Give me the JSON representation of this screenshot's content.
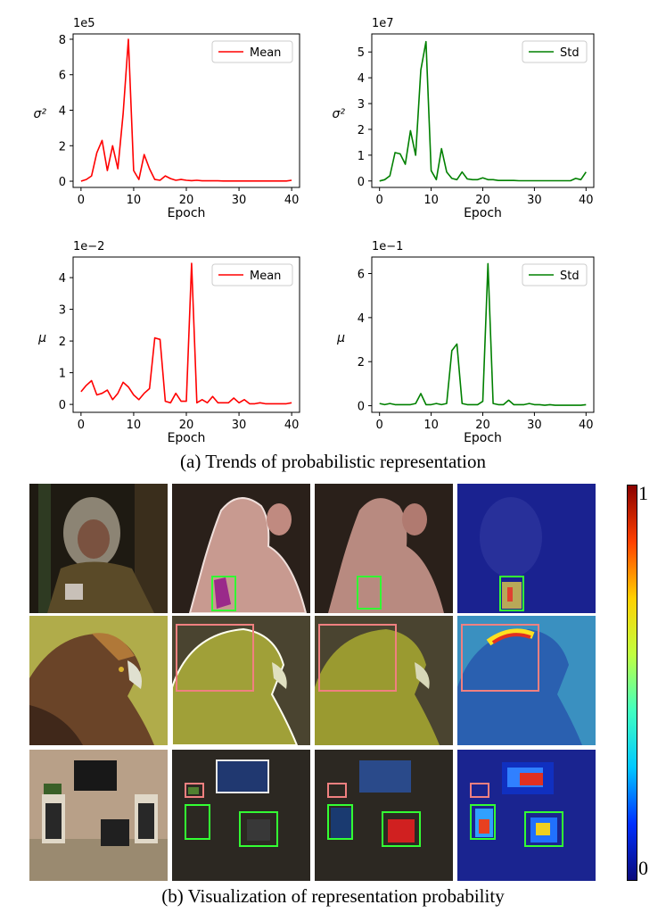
{
  "chart_data": [
    {
      "type": "line",
      "id": "var-mean",
      "multiplier": "1e5",
      "ylabel": "σ²",
      "xlabel": "Epoch",
      "legend": "Mean",
      "legend_position": "top-right",
      "color": "#ff0000",
      "xlim": [
        -1.5,
        41.5
      ],
      "ylim": [
        -0.35,
        8.3
      ],
      "xticks": [
        0,
        10,
        20,
        30,
        40
      ],
      "yticks": [
        0,
        2,
        4,
        6,
        8
      ],
      "x": [
        0,
        1,
        2,
        3,
        4,
        5,
        6,
        7,
        8,
        9,
        10,
        11,
        12,
        13,
        14,
        15,
        16,
        17,
        18,
        19,
        20,
        21,
        22,
        23,
        24,
        25,
        26,
        27,
        28,
        29,
        30,
        31,
        32,
        33,
        34,
        35,
        36,
        37,
        38,
        39,
        40
      ],
      "y": [
        0,
        0.1,
        0.3,
        1.6,
        2.3,
        0.6,
        2.0,
        0.7,
        3.8,
        8.0,
        0.6,
        0.1,
        1.5,
        0.7,
        0.1,
        0.05,
        0.3,
        0.15,
        0.05,
        0.1,
        0.05,
        0.03,
        0.05,
        0.02,
        0.02,
        0.02,
        0.02,
        0.01,
        0.01,
        0.01,
        0.01,
        0.01,
        0.01,
        0.01,
        0.01,
        0.01,
        0.01,
        0.01,
        0.01,
        0.01,
        0.05
      ]
    },
    {
      "type": "line",
      "id": "var-std",
      "multiplier": "1e7",
      "ylabel": "σ²",
      "xlabel": "Epoch",
      "legend": "Std",
      "legend_position": "top-right",
      "color": "#008000",
      "xlim": [
        -1.5,
        41.5
      ],
      "ylim": [
        -0.25,
        5.7
      ],
      "xticks": [
        0,
        10,
        20,
        30,
        40
      ],
      "yticks": [
        0,
        1,
        2,
        3,
        4,
        5
      ],
      "x": [
        0,
        1,
        2,
        3,
        4,
        5,
        6,
        7,
        8,
        9,
        10,
        11,
        12,
        13,
        14,
        15,
        16,
        17,
        18,
        19,
        20,
        21,
        22,
        23,
        24,
        25,
        26,
        27,
        28,
        29,
        30,
        31,
        32,
        33,
        34,
        35,
        36,
        37,
        38,
        39,
        40
      ],
      "y": [
        0,
        0.05,
        0.2,
        1.1,
        1.05,
        0.65,
        1.95,
        1.0,
        4.3,
        5.4,
        0.4,
        0.05,
        1.25,
        0.35,
        0.1,
        0.05,
        0.35,
        0.08,
        0.05,
        0.05,
        0.12,
        0.05,
        0.05,
        0.02,
        0.02,
        0.02,
        0.02,
        0.01,
        0.01,
        0.01,
        0.01,
        0.01,
        0.01,
        0.01,
        0.01,
        0.01,
        0.01,
        0.01,
        0.1,
        0.05,
        0.35
      ]
    },
    {
      "type": "line",
      "id": "mu-mean",
      "multiplier": "1e−2",
      "ylabel": "μ",
      "xlabel": "Epoch",
      "legend": "Mean",
      "legend_position": "top-right",
      "color": "#ff0000",
      "xlim": [
        -1.5,
        41.5
      ],
      "ylim": [
        -0.25,
        4.65
      ],
      "xticks": [
        0,
        10,
        20,
        30,
        40
      ],
      "yticks": [
        0,
        1,
        2,
        3,
        4
      ],
      "x": [
        0,
        1,
        2,
        3,
        4,
        5,
        6,
        7,
        8,
        9,
        10,
        11,
        12,
        13,
        14,
        15,
        16,
        17,
        18,
        19,
        20,
        21,
        22,
        23,
        24,
        25,
        26,
        27,
        28,
        29,
        30,
        31,
        32,
        33,
        34,
        35,
        36,
        37,
        38,
        39,
        40
      ],
      "y": [
        0.4,
        0.6,
        0.75,
        0.3,
        0.35,
        0.45,
        0.15,
        0.35,
        0.7,
        0.55,
        0.3,
        0.15,
        0.35,
        0.5,
        2.1,
        2.05,
        0.1,
        0.05,
        0.35,
        0.1,
        0.1,
        4.45,
        0.05,
        0.15,
        0.05,
        0.25,
        0.05,
        0.05,
        0.05,
        0.2,
        0.05,
        0.15,
        0.02,
        0.02,
        0.05,
        0.02,
        0.02,
        0.02,
        0.02,
        0.02,
        0.05
      ]
    },
    {
      "type": "line",
      "id": "mu-std",
      "multiplier": "1e−1",
      "ylabel": "μ",
      "xlabel": "Epoch",
      "legend": "Std",
      "legend_position": "top-right",
      "color": "#008000",
      "xlim": [
        -1.5,
        41.5
      ],
      "ylim": [
        -0.3,
        6.75
      ],
      "xticks": [
        0,
        10,
        20,
        30,
        40
      ],
      "yticks": [
        0,
        2,
        4,
        6
      ],
      "x": [
        0,
        1,
        2,
        3,
        4,
        5,
        6,
        7,
        8,
        9,
        10,
        11,
        12,
        13,
        14,
        15,
        16,
        17,
        18,
        19,
        20,
        21,
        22,
        23,
        24,
        25,
        26,
        27,
        28,
        29,
        30,
        31,
        32,
        33,
        34,
        35,
        36,
        37,
        38,
        39,
        40
      ],
      "y": [
        0.1,
        0.05,
        0.1,
        0.05,
        0.05,
        0.05,
        0.05,
        0.1,
        0.55,
        0.05,
        0.05,
        0.1,
        0.05,
        0.1,
        2.5,
        2.8,
        0.1,
        0.05,
        0.05,
        0.05,
        0.2,
        6.45,
        0.1,
        0.05,
        0.05,
        0.25,
        0.05,
        0.05,
        0.05,
        0.1,
        0.05,
        0.05,
        0.02,
        0.05,
        0.02,
        0.02,
        0.02,
        0.02,
        0.02,
        0.02,
        0.05
      ]
    }
  ],
  "caption_a": "(a) Trends of probabilistic representation",
  "caption_b": "(b) Visualization of representation probability",
  "colorbar": {
    "max_label": "1",
    "min_label": "0",
    "colors": [
      "#0a0a7a",
      "#0030ff",
      "#00c8ff",
      "#40ffc0",
      "#c0ff40",
      "#ffd000",
      "#ff4000",
      "#8a0000"
    ]
  }
}
